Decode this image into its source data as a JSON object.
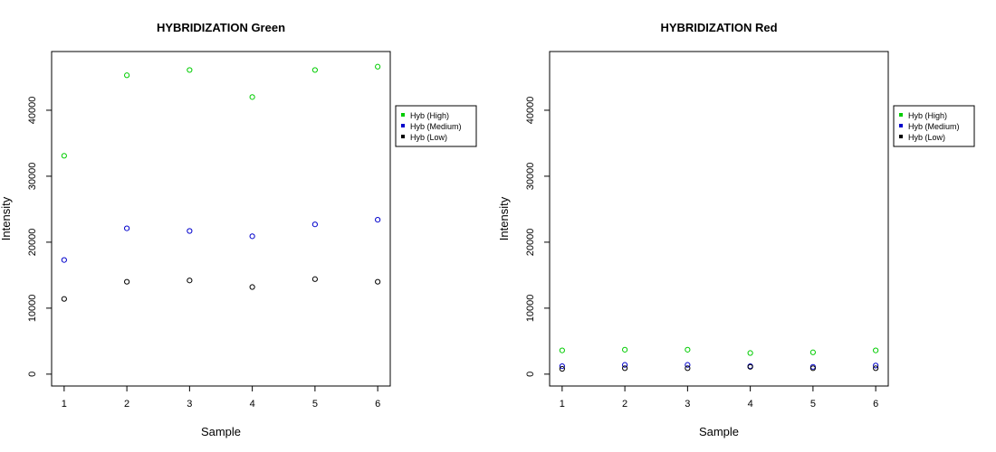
{
  "chart_data": [
    {
      "type": "scatter",
      "title": "HYBRIDIZATION Green",
      "xlabel": "Sample",
      "ylabel": "Intensity",
      "x": [
        1,
        2,
        3,
        4,
        5,
        6
      ],
      "xticks": [
        "1",
        "2",
        "3",
        "4",
        "5",
        "6"
      ],
      "xlim": [
        0.8,
        6.2
      ],
      "ylim": [
        -1800,
        48900
      ],
      "yticks": [
        "0",
        "10000",
        "20000",
        "30000",
        "40000"
      ],
      "grid": false,
      "legend_position": "right",
      "series": [
        {
          "name": "Hyb (High)",
          "color": "#00cc00",
          "values": [
            33100,
            45300,
            46100,
            42000,
            46100,
            46600
          ]
        },
        {
          "name": "Hyb (Medium)",
          "color": "#0000cc",
          "values": [
            17300,
            22100,
            21700,
            20900,
            22700,
            23400
          ]
        },
        {
          "name": "Hyb (Low)",
          "color": "#000000",
          "values": [
            11400,
            14000,
            14200,
            13200,
            14400,
            14000
          ]
        }
      ]
    },
    {
      "type": "scatter",
      "title": "HYBRIDIZATION Red",
      "xlabel": "Sample",
      "ylabel": "Intensity",
      "x": [
        1,
        2,
        3,
        4,
        5,
        6
      ],
      "xticks": [
        "1",
        "2",
        "3",
        "4",
        "5",
        "6"
      ],
      "xlim": [
        0.8,
        6.2
      ],
      "ylim": [
        -1800,
        48900
      ],
      "yticks": [
        "0",
        "10000",
        "20000",
        "30000",
        "40000"
      ],
      "grid": false,
      "legend_position": "right",
      "series": [
        {
          "name": "Hyb (High)",
          "color": "#00cc00",
          "values": [
            3600,
            3700,
            3700,
            3200,
            3300,
            3600
          ]
        },
        {
          "name": "Hyb (Medium)",
          "color": "#0000cc",
          "values": [
            1200,
            1400,
            1400,
            1200,
            1100,
            1300
          ]
        },
        {
          "name": "Hyb (Low)",
          "color": "#000000",
          "values": [
            800,
            900,
            900,
            1100,
            900,
            900
          ]
        }
      ]
    }
  ]
}
